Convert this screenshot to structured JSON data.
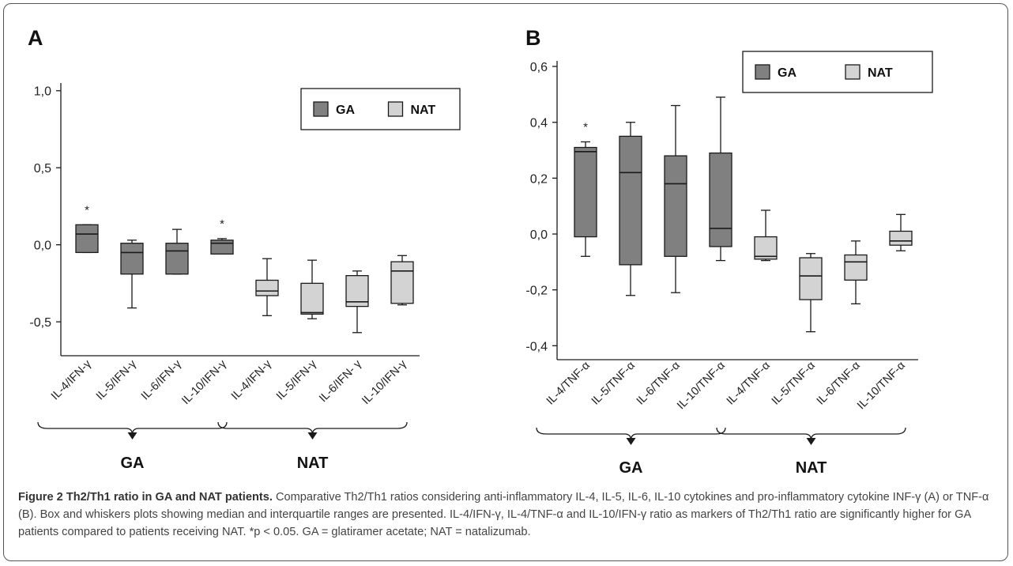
{
  "colors": {
    "ga": "#808080",
    "nat": "#d3d3d3",
    "stroke": "#1a1a1a"
  },
  "panels": [
    {
      "letter": "A",
      "chart_data": {
        "type": "box",
        "yticks": [
          "1,0",
          "0,5",
          "0,0",
          "-0,5"
        ],
        "ytick_values": [
          1.0,
          0.5,
          0.0,
          -0.5
        ],
        "ylim": [
          -0.72,
          1.05
        ],
        "legend": [
          {
            "name": "GA",
            "group": "ga"
          },
          {
            "name": "NAT",
            "group": "nat"
          }
        ],
        "legend_position": "top-right",
        "categories": [
          "IL-4/IFN-γ",
          "IL-5/IFN-γ",
          "IL-6/IFN-γ",
          "IL-10/IFN-γ",
          "IL-4/IFN-γ",
          "IL-5/IFN-γ",
          "IL-6/IFN- γ",
          "IL-10/IFN-γ"
        ],
        "boxes": [
          {
            "group": "ga",
            "min": -0.05,
            "q1": -0.05,
            "median": 0.07,
            "q3": 0.13,
            "max": 0.13,
            "star": true
          },
          {
            "group": "ga",
            "min": -0.41,
            "q1": -0.19,
            "median": -0.05,
            "q3": 0.01,
            "max": 0.03,
            "star": false
          },
          {
            "group": "ga",
            "min": -0.19,
            "q1": -0.19,
            "median": -0.04,
            "q3": 0.01,
            "max": 0.1,
            "star": false
          },
          {
            "group": "ga",
            "min": -0.06,
            "q1": -0.06,
            "median": 0.01,
            "q3": 0.03,
            "max": 0.04,
            "star": true
          },
          {
            "group": "nat",
            "min": -0.46,
            "q1": -0.33,
            "median": -0.3,
            "q3": -0.23,
            "max": -0.09,
            "star": false
          },
          {
            "group": "nat",
            "min": -0.48,
            "q1": -0.45,
            "median": -0.44,
            "q3": -0.25,
            "max": -0.1,
            "star": false
          },
          {
            "group": "nat",
            "min": -0.57,
            "q1": -0.4,
            "median": -0.37,
            "q3": -0.2,
            "max": -0.17,
            "star": false
          },
          {
            "group": "nat",
            "min": -0.39,
            "q1": -0.38,
            "median": -0.17,
            "q3": -0.11,
            "max": -0.07,
            "star": false
          }
        ],
        "star_label": "*",
        "groups": [
          "GA",
          "NAT"
        ]
      }
    },
    {
      "letter": "B",
      "chart_data": {
        "type": "box",
        "yticks": [
          "0,6",
          "0,4",
          "0,2",
          "0,0",
          "-0,2",
          "-0,4"
        ],
        "ytick_values": [
          0.6,
          0.4,
          0.2,
          0.0,
          -0.2,
          -0.4
        ],
        "ylim": [
          -0.45,
          0.62
        ],
        "legend": [
          {
            "name": "GA",
            "group": "ga"
          },
          {
            "name": "NAT",
            "group": "nat"
          }
        ],
        "legend_position": "top-right",
        "categories": [
          "IL-4/TNF-α",
          "IL-5/TNF-α",
          "IL-6/TNF-α",
          "IL-10/TNF-α",
          "IL-4/TNF-α",
          "IL-5/TNF-α",
          "IL-6/TNF-α",
          "IL-10/TNF-α"
        ],
        "boxes": [
          {
            "group": "ga",
            "min": -0.08,
            "q1": -0.01,
            "median": 0.295,
            "q3": 0.31,
            "max": 0.33,
            "star": true
          },
          {
            "group": "ga",
            "min": -0.22,
            "q1": -0.11,
            "median": 0.22,
            "q3": 0.35,
            "max": 0.4,
            "star": false
          },
          {
            "group": "ga",
            "min": -0.21,
            "q1": -0.08,
            "median": 0.18,
            "q3": 0.28,
            "max": 0.46,
            "star": false
          },
          {
            "group": "ga",
            "min": -0.095,
            "q1": -0.045,
            "median": 0.02,
            "q3": 0.29,
            "max": 0.49,
            "star": false
          },
          {
            "group": "nat",
            "min": -0.095,
            "q1": -0.09,
            "median": -0.08,
            "q3": -0.01,
            "max": 0.085,
            "star": false
          },
          {
            "group": "nat",
            "min": -0.35,
            "q1": -0.235,
            "median": -0.15,
            "q3": -0.085,
            "max": -0.07,
            "star": false
          },
          {
            "group": "nat",
            "min": -0.25,
            "q1": -0.165,
            "median": -0.1,
            "q3": -0.075,
            "max": -0.025,
            "star": false
          },
          {
            "group": "nat",
            "min": -0.06,
            "q1": -0.04,
            "median": -0.025,
            "q3": 0.01,
            "max": 0.07,
            "star": false
          }
        ],
        "star_label": "*",
        "groups": [
          "GA",
          "NAT"
        ]
      }
    }
  ],
  "caption": {
    "title": "Figure 2 Th2/Th1 ratio in GA and NAT patients.",
    "text": " Comparative Th2/Th1 ratios considering anti-inflammatory IL-4, IL-5, IL-6, IL-10 cytokines and pro-inflammatory cytokine INF-γ (A) or TNF-α (B). Box and whiskers plots showing median and interquartile ranges are presented. IL-4/IFN-γ, IL-4/TNF-α and IL-10/IFN-γ ratio as markers of Th2/Th1 ratio are significantly higher for GA patients compared to patients receiving NAT. *p < 0.05. GA = glatiramer acetate; NAT = natalizumab."
  }
}
